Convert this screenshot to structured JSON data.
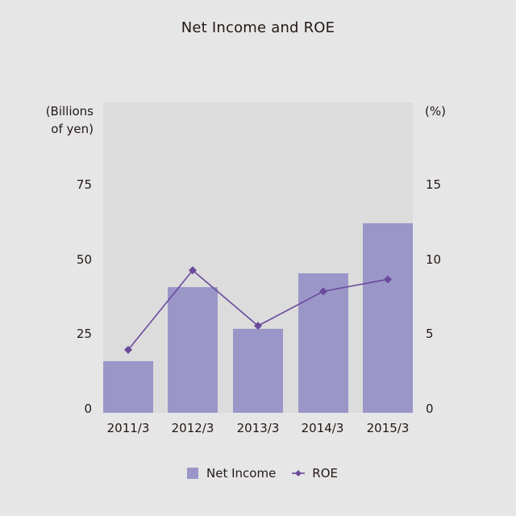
{
  "title": "Net Income and ROE",
  "axes": {
    "left_unit_line1": "(Billions",
    "left_unit_line2": "of yen)",
    "right_unit": "(%)",
    "left_ticks": [
      "0",
      "25",
      "50",
      "75"
    ],
    "right_ticks": [
      "0",
      "5",
      "10",
      "15"
    ]
  },
  "legend": {
    "bar_label": "Net Income",
    "line_label": "ROE"
  },
  "colors": {
    "background": "#e6e6e6",
    "plot_background": "#dcdcdc",
    "bar": "#9a96c8",
    "line": "#6a4a9c"
  },
  "chart_data": {
    "type": "bar+line",
    "title": "Net Income and ROE",
    "categories": [
      "2011/3",
      "2012/3",
      "2013/3",
      "2014/3",
      "2015/3"
    ],
    "series": [
      {
        "name": "Net Income",
        "type": "bar",
        "axis": "left",
        "unit": "Billions of yen",
        "values": [
          17.2,
          41.9,
          28.0,
          46.5,
          63.2
        ]
      },
      {
        "name": "ROE",
        "type": "line",
        "axis": "right",
        "unit": "%",
        "values": [
          4.2,
          9.5,
          5.8,
          8.1,
          8.9
        ]
      }
    ],
    "ylabel_left": "(Billions of yen)",
    "ylabel_right": "(%)",
    "ylim_left": [
      0,
      100
    ],
    "ylim_right": [
      0,
      20
    ],
    "yticks_left": [
      0,
      25,
      50,
      75
    ],
    "yticks_right": [
      0,
      5,
      10,
      15
    ],
    "grid": false,
    "legend_position": "bottom"
  }
}
